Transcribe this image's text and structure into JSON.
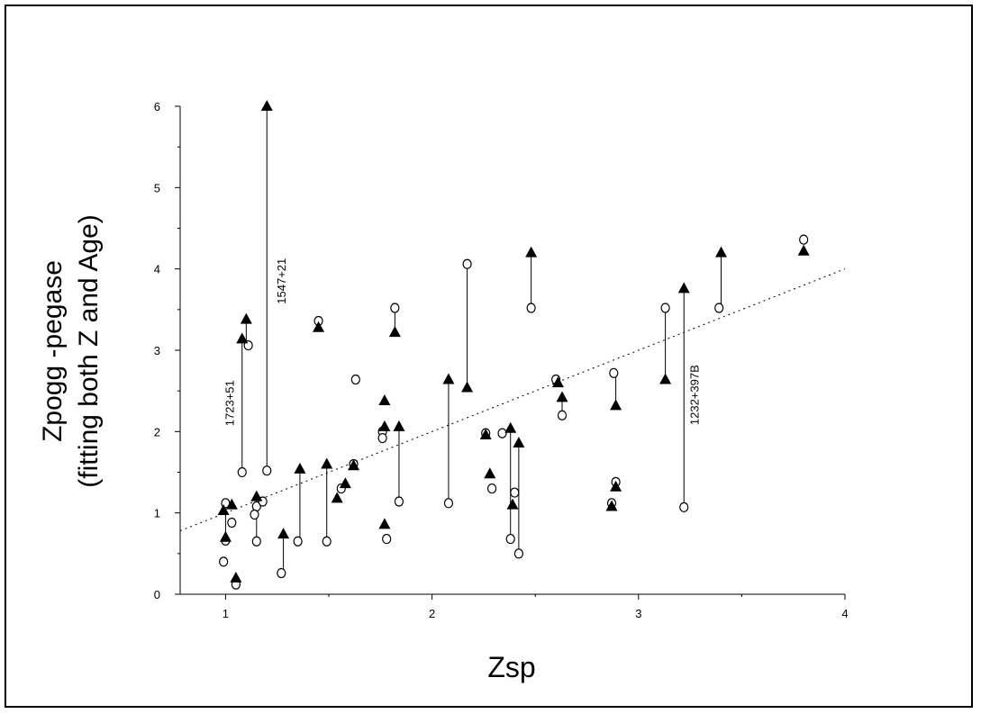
{
  "chart_data": {
    "type": "scatter",
    "xlabel": "Zsp",
    "ylabel_line1": "Zpogg -pegase",
    "ylabel_line2": "(fitting both Z and Age)",
    "xlim": [
      0.78,
      4.0
    ],
    "ylim": [
      0,
      6
    ],
    "xticks": [
      1,
      2,
      3,
      4
    ],
    "yticks": [
      0,
      1,
      2,
      3,
      4,
      5,
      6
    ],
    "grid": false,
    "fit_line": [
      [
        0.78,
        0.78
      ],
      [
        4.0,
        4.0
      ]
    ],
    "series": [
      {
        "marker": "open-circle",
        "points": [
          [
            1.0,
            1.12
          ],
          [
            1.0,
            0.66
          ],
          [
            0.99,
            0.4
          ],
          [
            1.03,
            0.88
          ],
          [
            1.05,
            0.12
          ],
          [
            1.08,
            1.5
          ],
          [
            1.11,
            3.06
          ],
          [
            1.15,
            1.08
          ],
          [
            1.14,
            0.98
          ],
          [
            1.15,
            0.65
          ],
          [
            1.2,
            1.52
          ],
          [
            1.18,
            1.14
          ],
          [
            1.27,
            0.26
          ],
          [
            1.35,
            0.65
          ],
          [
            1.45,
            3.36
          ],
          [
            1.49,
            0.65
          ],
          [
            1.56,
            1.3
          ],
          [
            1.62,
            1.6
          ],
          [
            1.63,
            2.64
          ],
          [
            1.76,
            2.0
          ],
          [
            1.76,
            1.92
          ],
          [
            1.78,
            0.68
          ],
          [
            1.82,
            3.52
          ],
          [
            1.84,
            1.14
          ],
          [
            2.08,
            1.12
          ],
          [
            2.17,
            4.06
          ],
          [
            2.26,
            1.98
          ],
          [
            2.29,
            1.3
          ],
          [
            2.34,
            1.98
          ],
          [
            2.38,
            0.68
          ],
          [
            2.4,
            1.25
          ],
          [
            2.42,
            0.5
          ],
          [
            2.48,
            3.52
          ],
          [
            2.6,
            2.64
          ],
          [
            2.63,
            2.2
          ],
          [
            2.87,
            1.12
          ],
          [
            2.89,
            1.38
          ],
          [
            2.88,
            2.72
          ],
          [
            3.13,
            3.52
          ],
          [
            3.22,
            1.07
          ],
          [
            3.39,
            3.52
          ],
          [
            3.8,
            4.36
          ]
        ]
      },
      {
        "marker": "filled-triangle",
        "points": [
          [
            0.99,
            1.03
          ],
          [
            1.0,
            0.7
          ],
          [
            1.03,
            1.1
          ],
          [
            1.05,
            0.2
          ],
          [
            1.08,
            3.14
          ],
          [
            1.1,
            3.38
          ],
          [
            1.15,
            1.2
          ],
          [
            1.2,
            6.0
          ],
          [
            1.28,
            0.74
          ],
          [
            1.36,
            1.54
          ],
          [
            1.45,
            3.28
          ],
          [
            1.49,
            1.6
          ],
          [
            1.54,
            1.18
          ],
          [
            1.58,
            1.36
          ],
          [
            1.62,
            1.58
          ],
          [
            1.77,
            2.38
          ],
          [
            1.77,
            2.06
          ],
          [
            1.77,
            0.86
          ],
          [
            1.82,
            3.22
          ],
          [
            1.84,
            2.06
          ],
          [
            2.08,
            2.64
          ],
          [
            2.17,
            2.54
          ],
          [
            2.26,
            1.96
          ],
          [
            2.28,
            1.48
          ],
          [
            2.38,
            2.04
          ],
          [
            2.39,
            1.1
          ],
          [
            2.42,
            1.86
          ],
          [
            2.48,
            4.2
          ],
          [
            2.61,
            2.6
          ],
          [
            2.63,
            2.42
          ],
          [
            2.87,
            1.08
          ],
          [
            2.89,
            1.32
          ],
          [
            2.89,
            2.32
          ],
          [
            3.13,
            2.64
          ],
          [
            3.22,
            3.76
          ],
          [
            3.4,
            4.2
          ],
          [
            3.8,
            4.22
          ]
        ]
      }
    ],
    "connectors": [
      [
        [
          1.08,
          1.5
        ],
        [
          1.08,
          3.14
        ]
      ],
      [
        [
          1.2,
          1.52
        ],
        [
          1.2,
          6.0
        ]
      ],
      [
        [
          1.28,
          0.26
        ],
        [
          1.28,
          0.74
        ]
      ],
      [
        [
          1.36,
          0.65
        ],
        [
          1.36,
          1.54
        ]
      ],
      [
        [
          1.49,
          0.65
        ],
        [
          1.49,
          1.6
        ]
      ],
      [
        [
          1.84,
          1.14
        ],
        [
          1.84,
          2.06
        ]
      ],
      [
        [
          2.08,
          1.12
        ],
        [
          2.08,
          2.64
        ]
      ],
      [
        [
          2.17,
          4.06
        ],
        [
          2.17,
          2.54
        ]
      ],
      [
        [
          2.38,
          0.68
        ],
        [
          2.38,
          2.04
        ]
      ],
      [
        [
          2.42,
          0.5
        ],
        [
          2.42,
          1.86
        ]
      ],
      [
        [
          2.48,
          3.52
        ],
        [
          2.48,
          4.2
        ]
      ],
      [
        [
          2.89,
          2.72
        ],
        [
          2.89,
          2.32
        ]
      ],
      [
        [
          3.13,
          3.52
        ],
        [
          3.13,
          2.64
        ]
      ],
      [
        [
          3.22,
          1.07
        ],
        [
          3.22,
          3.76
        ]
      ],
      [
        [
          3.4,
          3.52
        ],
        [
          3.4,
          4.2
        ]
      ],
      [
        [
          1.0,
          0.66
        ],
        [
          1.0,
          1.03
        ]
      ],
      [
        [
          1.15,
          0.65
        ],
        [
          1.15,
          1.2
        ]
      ],
      [
        [
          1.45,
          3.36
        ],
        [
          1.45,
          3.28
        ]
      ],
      [
        [
          1.82,
          3.52
        ],
        [
          1.82,
          3.22
        ]
      ],
      [
        [
          2.63,
          2.2
        ],
        [
          2.63,
          2.42
        ]
      ],
      [
        [
          1.1,
          3.06
        ],
        [
          1.1,
          3.38
        ]
      ]
    ],
    "annotations": [
      {
        "text": "1723+51",
        "x": 1.04,
        "y": 2.35
      },
      {
        "text": "1547+21",
        "x": 1.29,
        "y": 3.85
      },
      {
        "text": "1232+397B",
        "x": 3.29,
        "y": 2.45
      }
    ]
  }
}
